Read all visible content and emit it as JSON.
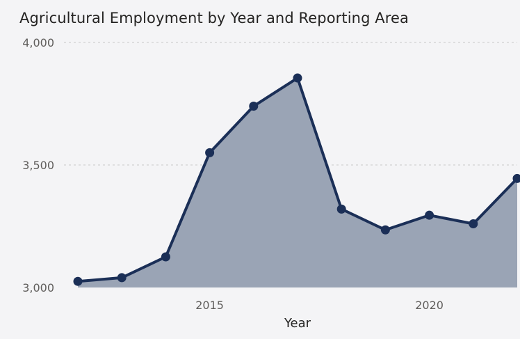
{
  "title": "Agricultural Employment by Year and Reporting Area",
  "colors": {
    "line": "#1b2f57",
    "area": "#9aa4b5",
    "grid": "#c8c8c8",
    "background": "#f4f4f6"
  },
  "chart_data": {
    "type": "area",
    "title": "Agricultural Employment by Year and Reporting Area",
    "xlabel": "Year",
    "ylabel": "",
    "x": [
      2012,
      2013,
      2014,
      2015,
      2016,
      2017,
      2018,
      2019,
      2020,
      2021,
      2022
    ],
    "series": [
      {
        "values": [
          3025,
          3040,
          3125,
          3550,
          3740,
          3855,
          3320,
          3235,
          3295,
          3260,
          3445
        ]
      }
    ],
    "x_ticks": [
      "2015",
      "2020"
    ],
    "y_ticks": [
      "3,000",
      "3,500",
      "4,000"
    ],
    "ylim": [
      3000,
      4000
    ],
    "grid": true
  }
}
